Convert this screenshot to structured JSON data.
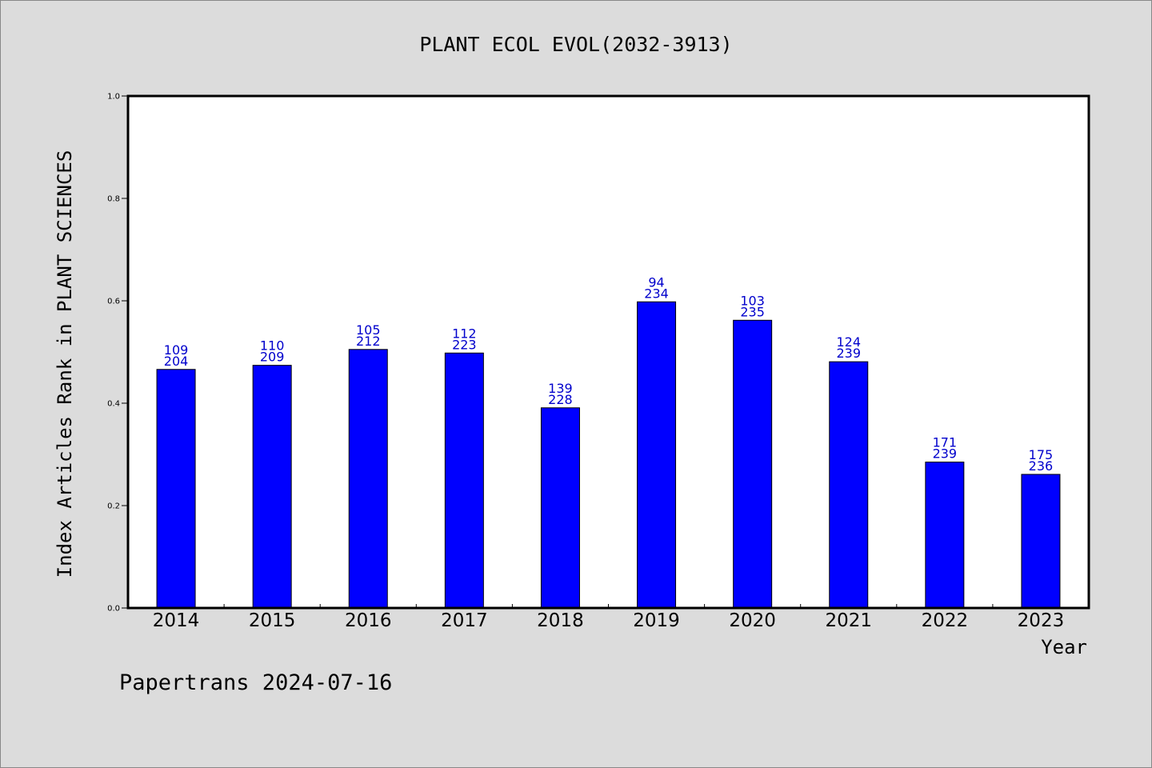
{
  "footer": "Papertrans 2024-07-16",
  "colors": {
    "background": "#dcdcdc",
    "plot_background": "#ffffff",
    "bar": "#0000ff",
    "bar_label": "#0000cc"
  },
  "chart_data": {
    "type": "bar",
    "title": "PLANT ECOL EVOL(2032-3913)",
    "xlabel": "Year",
    "ylabel": "Index Articles Rank in PLANT SCIENCES",
    "ylim": [
      0,
      1.0
    ],
    "yticks": [
      "0.0",
      "0.2",
      "0.4",
      "0.6",
      "0.8",
      "1.0"
    ],
    "categories": [
      "2014",
      "2015",
      "2016",
      "2017",
      "2018",
      "2019",
      "2020",
      "2021",
      "2022",
      "2023"
    ],
    "values": [
      0.466,
      0.474,
      0.505,
      0.498,
      0.391,
      0.598,
      0.562,
      0.481,
      0.285,
      0.261
    ],
    "rank": [
      "109",
      "110",
      "105",
      "112",
      "139",
      "94",
      "103",
      "124",
      "171",
      "175"
    ],
    "total": [
      "204",
      "209",
      "212",
      "223",
      "228",
      "234",
      "235",
      "239",
      "239",
      "236"
    ],
    "grid": false,
    "legend": "none"
  }
}
